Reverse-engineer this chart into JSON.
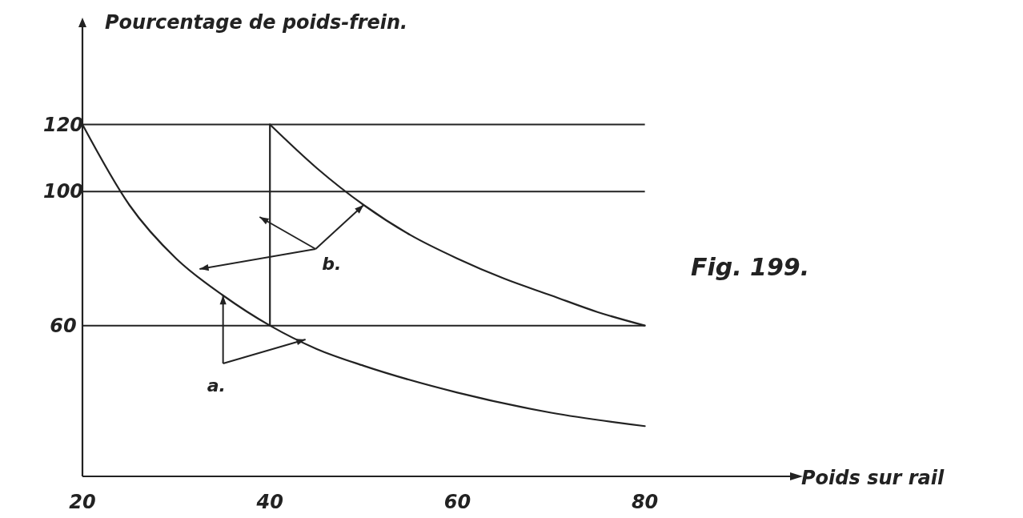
{
  "chart_data": {
    "type": "line",
    "ylabel": "Pourcentage de poids-frein.",
    "xlabel": "Poids sur rail",
    "xlim": [
      20,
      96
    ],
    "xticks": [
      20,
      40,
      60,
      80
    ],
    "ylim": [
      15,
      150
    ],
    "yticks": [
      60,
      100,
      120
    ],
    "grid": false,
    "marker": "none",
    "line_style": "solid",
    "series": [
      {
        "color": "#222222",
        "x": [
          20,
          25,
          30,
          35,
          40,
          45,
          50,
          60,
          70,
          80
        ],
        "values": [
          120,
          96,
          80,
          69,
          60,
          53,
          48,
          40,
          34,
          30
        ]
      },
      {
        "color": "#222222",
        "x": [
          40,
          45,
          50,
          55,
          60,
          65,
          70,
          75,
          80
        ],
        "values": [
          120,
          107,
          96,
          87,
          80,
          74,
          69,
          64,
          60
        ]
      },
      {
        "color": "#222222",
        "x": [
          40,
          40
        ],
        "values": [
          60,
          120
        ]
      }
    ],
    "ref_lines": [
      {
        "axis": "y",
        "value": 120,
        "color": "#222222"
      },
      {
        "axis": "y",
        "value": 100,
        "color": "#222222"
      },
      {
        "axis": "y",
        "value": 60,
        "color": "#222222"
      }
    ],
    "annotations": [
      {
        "text": "b.",
        "x": 50,
        "y": 96
      },
      {
        "text": "a.",
        "x": 35,
        "y": 69
      },
      "Fig. 199."
    ]
  }
}
